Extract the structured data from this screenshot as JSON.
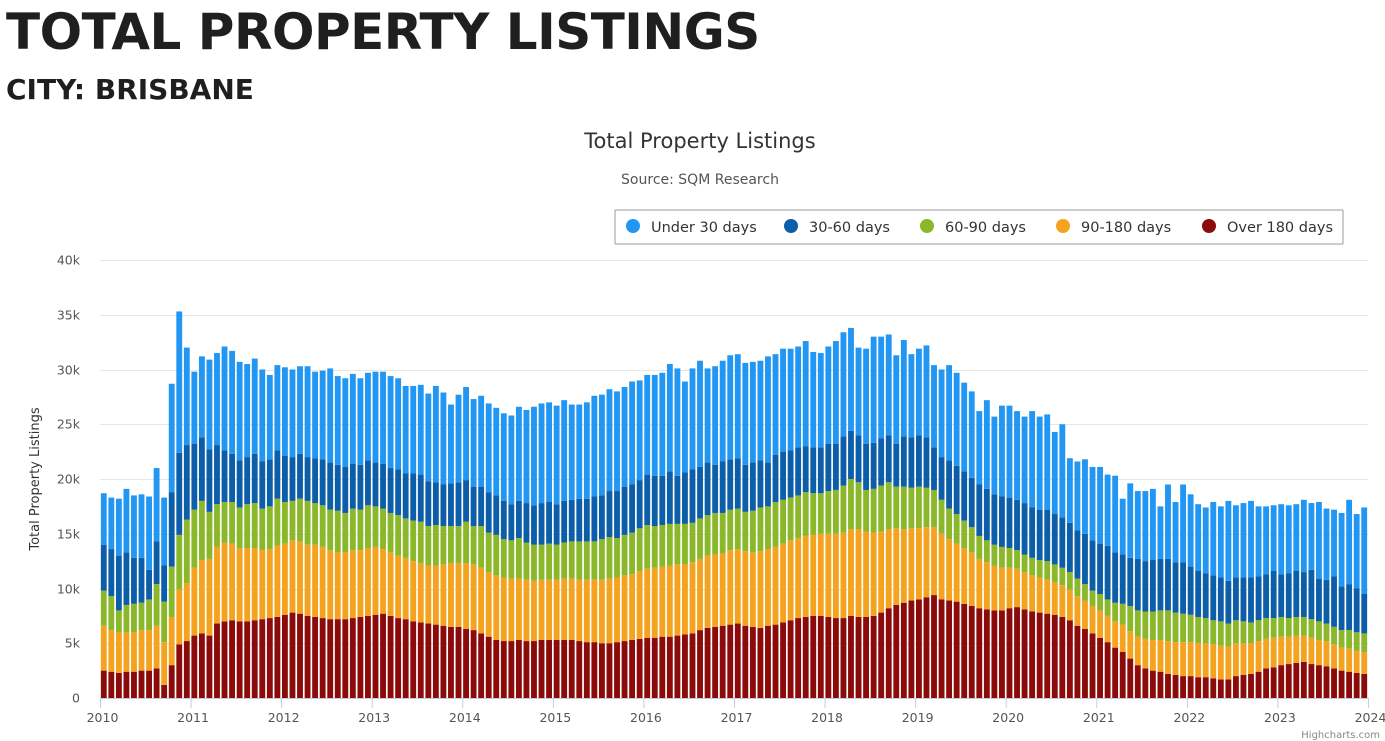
{
  "page": {
    "title": "TOTAL PROPERTY LISTINGS",
    "subtitle": "CITY: BRISBANE"
  },
  "credits": "Highcharts.com",
  "chart_data": {
    "type": "bar",
    "stacked": true,
    "title": "Total Property Listings",
    "subtitle": "Source: SQM Research",
    "ylabel": "Total Property Listings",
    "xlabel": "",
    "ylim": [
      0,
      40000
    ],
    "yticks": [
      0,
      5000,
      10000,
      15000,
      20000,
      25000,
      30000,
      35000,
      40000
    ],
    "ytick_labels": [
      "0",
      "5k",
      "10k",
      "15k",
      "20k",
      "25k",
      "30k",
      "35k",
      "40k"
    ],
    "xtick_labels": [
      "2010",
      "2011",
      "2012",
      "2013",
      "2014",
      "2015",
      "2016",
      "2017",
      "2018",
      "2019",
      "2020",
      "2021",
      "2022",
      "2023",
      "2024"
    ],
    "x_start": "2010-01",
    "frequency": "monthly",
    "grid": true,
    "legend_position": "top-right",
    "series_order_bottom_to_top": [
      "Over 180 days",
      "90-180 days",
      "60-90 days",
      "30-60 days",
      "Under 30 days"
    ],
    "series": [
      {
        "name": "Under 30 days",
        "color": "#2196F3",
        "values": [
          4700,
          4700,
          5200,
          5800,
          5700,
          5800,
          6700,
          6700,
          6200,
          9900,
          12900,
          8900,
          6600,
          7400,
          8200,
          8400,
          9500,
          9400,
          9000,
          8500,
          8700,
          8400,
          7700,
          7800,
          8100,
          8000,
          8000,
          8300,
          7900,
          8100,
          8600,
          8100,
          8100,
          8200,
          7900,
          8000,
          8300,
          8400,
          8400,
          8300,
          8000,
          8000,
          8200,
          8000,
          8800,
          8400,
          7200,
          8000,
          8500,
          8000,
          8300,
          8100,
          8000,
          8000,
          8100,
          8600,
          8500,
          9000,
          9100,
          9100,
          9000,
          9200,
          8700,
          8600,
          8800,
          9200,
          9200,
          9300,
          9100,
          9100,
          9400,
          9100,
          9100,
          9200,
          9400,
          9800,
          9800,
          8300,
          9200,
          9700,
          8600,
          9000,
          9200,
          9500,
          9500,
          9300,
          9200,
          9100,
          9700,
          9200,
          9400,
          9300,
          9200,
          9600,
          8700,
          8600,
          8900,
          9400,
          9500,
          9400,
          8000,
          8700,
          9700,
          9300,
          9200,
          8100,
          8800,
          7600,
          7900,
          8400,
          7500,
          8000,
          8700,
          8500,
          8100,
          7900,
          6700,
          8100,
          7100,
          8300,
          8400,
          8100,
          7900,
          8800,
          8500,
          8700,
          7500,
          8500,
          5900,
          6300,
          6800,
          6700,
          7000,
          6500,
          7000,
          5100,
          6800,
          6200,
          6400,
          6500,
          4800,
          6800,
          5500,
          7100,
          6600,
          6100,
          6000,
          6700,
          6500,
          7300,
          6600,
          6800,
          7000,
          6400,
          6200,
          6000,
          6400,
          6200,
          6100,
          6600,
          6100,
          7000,
          6500,
          6100,
          6700,
          7700,
          6800,
          7900
        ]
      },
      {
        "name": "30-60 days",
        "color": "#0D5EA8",
        "values": [
          4200,
          4300,
          5000,
          4800,
          4200,
          4100,
          2700,
          3900,
          3300,
          6800,
          7500,
          6800,
          6000,
          5800,
          5700,
          5400,
          4700,
          4400,
          4300,
          4300,
          4500,
          4300,
          4300,
          4400,
          4200,
          4000,
          4100,
          4000,
          4100,
          4200,
          4300,
          4200,
          4200,
          4100,
          4100,
          4100,
          4000,
          4100,
          4100,
          4200,
          4100,
          4300,
          4300,
          4100,
          3900,
          3800,
          3900,
          4000,
          3800,
          3600,
          3600,
          3700,
          3600,
          3500,
          3300,
          3400,
          3600,
          3600,
          3800,
          3800,
          3700,
          3800,
          3800,
          3900,
          3900,
          4100,
          4000,
          4200,
          4300,
          4400,
          4400,
          4400,
          4600,
          4600,
          4500,
          4800,
          4400,
          4700,
          4900,
          4700,
          4800,
          4400,
          4700,
          4600,
          4600,
          4300,
          4400,
          4300,
          4000,
          4300,
          4400,
          4300,
          4400,
          4200,
          4200,
          4200,
          4300,
          4200,
          4500,
          4400,
          4300,
          4200,
          4200,
          4300,
          4300,
          3900,
          4600,
          4600,
          4700,
          4600,
          3900,
          3900,
          4400,
          4400,
          4500,
          4500,
          4700,
          4700,
          4600,
          4600,
          4600,
          4600,
          4700,
          4600,
          4600,
          4700,
          4600,
          4600,
          4500,
          4400,
          4600,
          4600,
          4600,
          4900,
          4600,
          4500,
          4400,
          4700,
          4600,
          4700,
          4700,
          4700,
          4600,
          4700,
          4400,
          4200,
          4100,
          4100,
          4000,
          3900,
          3900,
          4000,
          4100,
          4000,
          4000,
          4300,
          3900,
          4100,
          4200,
          4100,
          4500,
          3900,
          4000,
          4600,
          4000,
          4200,
          4000,
          3600
        ]
      },
      {
        "name": "60-90 days",
        "color": "#8AB82A",
        "values": [
          3200,
          3100,
          2000,
          2500,
          2600,
          2500,
          2800,
          3800,
          3700,
          4600,
          5000,
          5800,
          5300,
          5400,
          4300,
          3900,
          3700,
          3800,
          3700,
          4000,
          4100,
          3800,
          3900,
          4300,
          3800,
          3600,
          3900,
          4000,
          3800,
          3800,
          3700,
          3800,
          3600,
          3800,
          3700,
          3900,
          3700,
          3700,
          3600,
          3700,
          3600,
          3700,
          3800,
          3600,
          3700,
          3500,
          3400,
          3400,
          3800,
          3500,
          3800,
          3600,
          3700,
          3500,
          3500,
          3700,
          3400,
          3300,
          3200,
          3300,
          3200,
          3300,
          3400,
          3500,
          3500,
          3500,
          3700,
          3800,
          3600,
          3700,
          3800,
          3900,
          4000,
          3800,
          3800,
          3800,
          3700,
          3700,
          3600,
          3700,
          3700,
          3800,
          3700,
          3700,
          3700,
          3600,
          3800,
          4000,
          3900,
          4100,
          4000,
          3900,
          3900,
          4000,
          3800,
          3700,
          3900,
          4000,
          4300,
          4600,
          4300,
          3800,
          4000,
          4200,
          4300,
          3800,
          3900,
          3700,
          3800,
          3600,
          3400,
          3100,
          2800,
          2700,
          2500,
          2300,
          2100,
          2000,
          1900,
          1900,
          1800,
          1700,
          1600,
          1600,
          1600,
          1700,
          1600,
          1600,
          1600,
          1600,
          1500,
          1400,
          1500,
          1500,
          1700,
          1900,
          2300,
          2400,
          2500,
          2600,
          2700,
          2800,
          2700,
          2600,
          2500,
          2400,
          2300,
          2200,
          2200,
          2100,
          2100,
          2000,
          1900,
          1900,
          1900,
          1800,
          1800,
          1700,
          1700,
          1700,
          1700,
          1700,
          1600,
          1600,
          1600,
          1700,
          1700,
          1700
        ]
      },
      {
        "name": "90-180 days",
        "color": "#F5A31E",
        "values": [
          4100,
          3800,
          3700,
          3600,
          3600,
          3700,
          3700,
          3900,
          3900,
          4400,
          5000,
          5300,
          6200,
          6700,
          7000,
          7000,
          7200,
          7000,
          6700,
          6700,
          6600,
          6300,
          6300,
          6500,
          6500,
          6600,
          6600,
          6500,
          6600,
          6500,
          6300,
          6100,
          6100,
          6200,
          6100,
          6200,
          6200,
          5900,
          5800,
          5700,
          5600,
          5500,
          5400,
          5300,
          5400,
          5600,
          5800,
          5800,
          6000,
          6000,
          6000,
          5900,
          5900,
          5800,
          5700,
          5600,
          5600,
          5500,
          5500,
          5500,
          5500,
          5600,
          5600,
          5600,
          5700,
          5700,
          5800,
          5900,
          5900,
          6000,
          6000,
          6200,
          6300,
          6400,
          6400,
          6500,
          6500,
          6400,
          6500,
          6500,
          6600,
          6600,
          6600,
          6800,
          6800,
          6800,
          6800,
          7000,
          7000,
          7100,
          7200,
          7300,
          7300,
          7400,
          7400,
          7500,
          7600,
          7700,
          7800,
          7900,
          8000,
          7800,
          7600,
          7400,
          7200,
          7000,
          6700,
          6600,
          6500,
          6400,
          6200,
          6000,
          5600,
          5300,
          5100,
          4900,
          4500,
          4300,
          4100,
          3900,
          3700,
          3500,
          3400,
          3300,
          3200,
          3100,
          3000,
          2900,
          2800,
          2700,
          2600,
          2500,
          2500,
          2400,
          2400,
          2500,
          2500,
          2600,
          2700,
          2800,
          2900,
          3000,
          3000,
          3100,
          3100,
          3100,
          3100,
          3100,
          3100,
          3000,
          3000,
          2900,
          2800,
          2800,
          2700,
          2700,
          2600,
          2500,
          2500,
          2400,
          2400,
          2300,
          2300,
          2200,
          2100,
          2100,
          2000,
          2000
        ]
      },
      {
        "name": "Over 180 days",
        "color": "#8B0A0A",
        "values": [
          2500,
          2400,
          2300,
          2400,
          2400,
          2500,
          2500,
          2700,
          1200,
          3000,
          4900,
          5200,
          5700,
          5900,
          5700,
          6800,
          7000,
          7100,
          7000,
          7000,
          7100,
          7200,
          7300,
          7400,
          7600,
          7800,
          7700,
          7500,
          7400,
          7300,
          7200,
          7200,
          7200,
          7300,
          7400,
          7500,
          7600,
          7700,
          7500,
          7300,
          7200,
          7000,
          6900,
          6800,
          6700,
          6600,
          6500,
          6500,
          6300,
          6200,
          5900,
          5600,
          5300,
          5200,
          5200,
          5300,
          5200,
          5200,
          5300,
          5300,
          5300,
          5300,
          5300,
          5200,
          5100,
          5100,
          5000,
          5000,
          5100,
          5200,
          5300,
          5400,
          5500,
          5500,
          5600,
          5600,
          5700,
          5800,
          5900,
          6200,
          6400,
          6500,
          6600,
          6700,
          6800,
          6600,
          6500,
          6400,
          6600,
          6700,
          6900,
          7100,
          7300,
          7400,
          7500,
          7500,
          7400,
          7300,
          7300,
          7500,
          7400,
          7400,
          7500,
          7800,
          8200,
          8500,
          8700,
          8900,
          9000,
          9200,
          9400,
          9000,
          8900,
          8800,
          8600,
          8400,
          8200,
          8100,
          8000,
          8000,
          8200,
          8300,
          8100,
          7900,
          7800,
          7700,
          7600,
          7400,
          7100,
          6600,
          6300,
          5900,
          5500,
          5100,
          4600,
          4200,
          3600,
          3000,
          2700,
          2500,
          2400,
          2200,
          2100,
          2000,
          2000,
          1900,
          1900,
          1800,
          1700,
          1700,
          2000,
          2100,
          2200,
          2400,
          2700,
          2800,
          3000,
          3100,
          3200,
          3300,
          3100,
          3000,
          2900,
          2700,
          2500,
          2400,
          2300,
          2200
        ]
      }
    ]
  }
}
